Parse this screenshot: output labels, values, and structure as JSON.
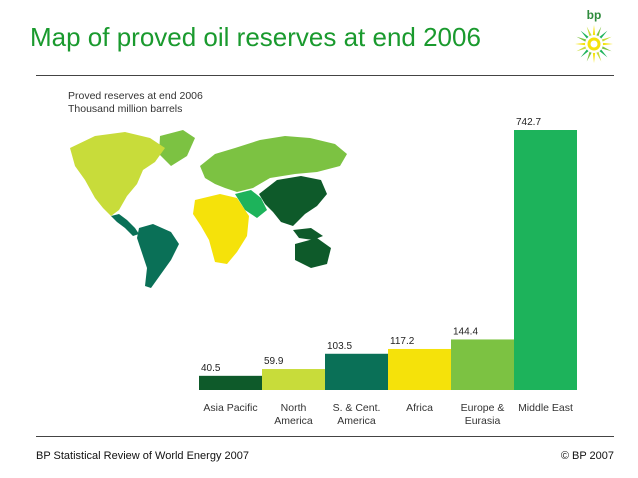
{
  "slide": {
    "title": "Map of proved oil reserves at end 2006",
    "logo_text": "bp",
    "footer_left": "BP Statistical Review of World Energy 2007",
    "footer_right": "© BP 2007"
  },
  "colors": {
    "title": "#1a9a2e",
    "asia_pacific": "#0e5a2a",
    "north_america": "#c8dc3a",
    "south_central_america": "#0a7057",
    "africa": "#f5e20a",
    "europe_eurasia": "#7cc242",
    "middle_east": "#1db35b"
  },
  "chart_data": {
    "type": "bar",
    "subtitle": [
      "Proved reserves at end 2006",
      "Thousand million barrels"
    ],
    "categories": [
      [
        "Asia Pacific"
      ],
      [
        "North",
        "America"
      ],
      [
        "S. & Cent.",
        "America"
      ],
      [
        "Africa"
      ],
      [
        "Europe &",
        "Eurasia"
      ],
      [
        "Middle East"
      ]
    ],
    "values": [
      40.5,
      59.9,
      103.5,
      117.2,
      144.4,
      742.7
    ],
    "value_labels": [
      "40.5",
      "59.9",
      "103.5",
      "117.2",
      "144.4",
      "742.7"
    ],
    "bar_colors": [
      "#0e5a2a",
      "#c8dc3a",
      "#0a7057",
      "#f5e20a",
      "#7cc242",
      "#1db35b"
    ],
    "ylim": [
      0,
      742.7
    ],
    "grid": false,
    "legend": "none"
  }
}
